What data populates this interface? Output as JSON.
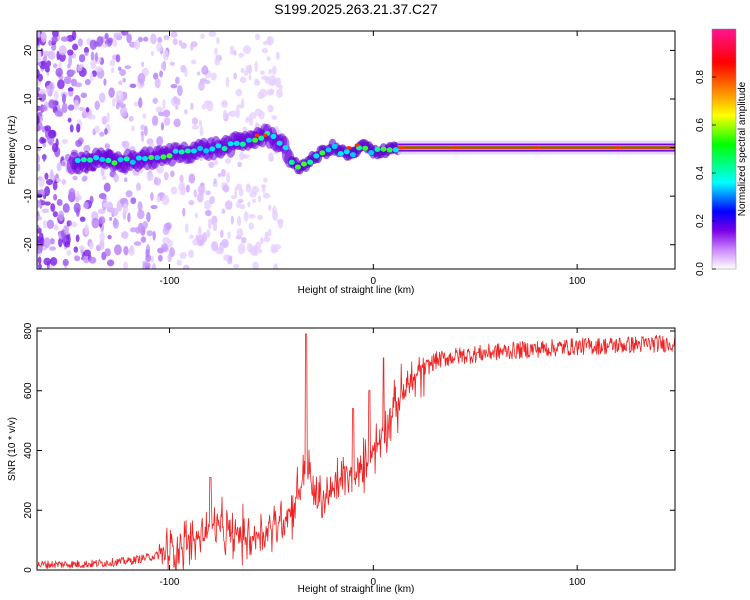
{
  "figure": {
    "title": "S199.2025.263.21.37.C27"
  },
  "chart_data": [
    {
      "type": "heatmap",
      "title": "S199.2025.263.21.37.C27",
      "xlabel": "Height of straight line (km)",
      "ylabel": "Frequency (Hz)",
      "xlim": [
        -165,
        148
      ],
      "ylim": [
        -25,
        24
      ],
      "xticks": [
        -100,
        0,
        100
      ],
      "yticks": [
        -20,
        -10,
        0,
        10,
        20
      ],
      "colorbar": {
        "label": "Normalized spectral amplitude",
        "range": [
          0,
          1
        ],
        "ticks": [
          0.0,
          0.2,
          0.4,
          0.6,
          0.8
        ],
        "colors": [
          "#ffffff",
          "#cc88ff",
          "#7a00e6",
          "#0000ff",
          "#00ffff",
          "#00ff00",
          "#ffff00",
          "#ff8800",
          "#ff0000",
          "#ff1493"
        ]
      },
      "ridge": {
        "x": [
          -145,
          -135,
          -125,
          -115,
          -105,
          -95,
          -85,
          -75,
          -65,
          -58,
          -52,
          -45,
          -42,
          -40,
          -36,
          -30,
          -25,
          -20,
          -15,
          -10,
          -5,
          0,
          5,
          10,
          20,
          40,
          80,
          120,
          148
        ],
        "y": [
          -3,
          -2.5,
          -3,
          -2.5,
          -2,
          -1,
          -0.5,
          0,
          1,
          2,
          2.5,
          1,
          -1,
          -3.5,
          -4,
          -2.5,
          -1,
          0,
          -1,
          -1.5,
          0.5,
          -1,
          -0.5,
          0,
          0,
          0,
          0,
          0,
          0
        ]
      }
    },
    {
      "type": "line",
      "xlabel": "Height of straight line (km)",
      "ylabel": "SNR (10 * v/v)",
      "xlim": [
        -165,
        148
      ],
      "ylim": [
        0,
        810
      ],
      "xticks": [
        -100,
        0,
        100
      ],
      "yticks": [
        0,
        200,
        400,
        600,
        800
      ],
      "color": "#ee2222",
      "envelope": {
        "x": [
          -165,
          -140,
          -120,
          -105,
          -95,
          -85,
          -80,
          -70,
          -60,
          -50,
          -45,
          -40,
          -35,
          -32,
          -30,
          -25,
          -20,
          -15,
          -10,
          -5,
          0,
          5,
          10,
          15,
          20,
          25,
          30,
          40,
          60,
          80,
          100,
          120,
          148
        ],
        "y": [
          18,
          20,
          30,
          50,
          80,
          110,
          150,
          120,
          110,
          140,
          170,
          200,
          300,
          360,
          260,
          230,
          260,
          320,
          290,
          340,
          400,
          460,
          530,
          600,
          640,
          670,
          700,
          715,
          730,
          740,
          748,
          752,
          760
        ]
      },
      "spikes": [
        {
          "x": -80,
          "y": 310
        },
        {
          "x": -33,
          "y": 790
        },
        {
          "x": -10,
          "y": 540
        },
        {
          "x": -2,
          "y": 600
        },
        {
          "x": 5,
          "y": 710
        }
      ]
    }
  ]
}
